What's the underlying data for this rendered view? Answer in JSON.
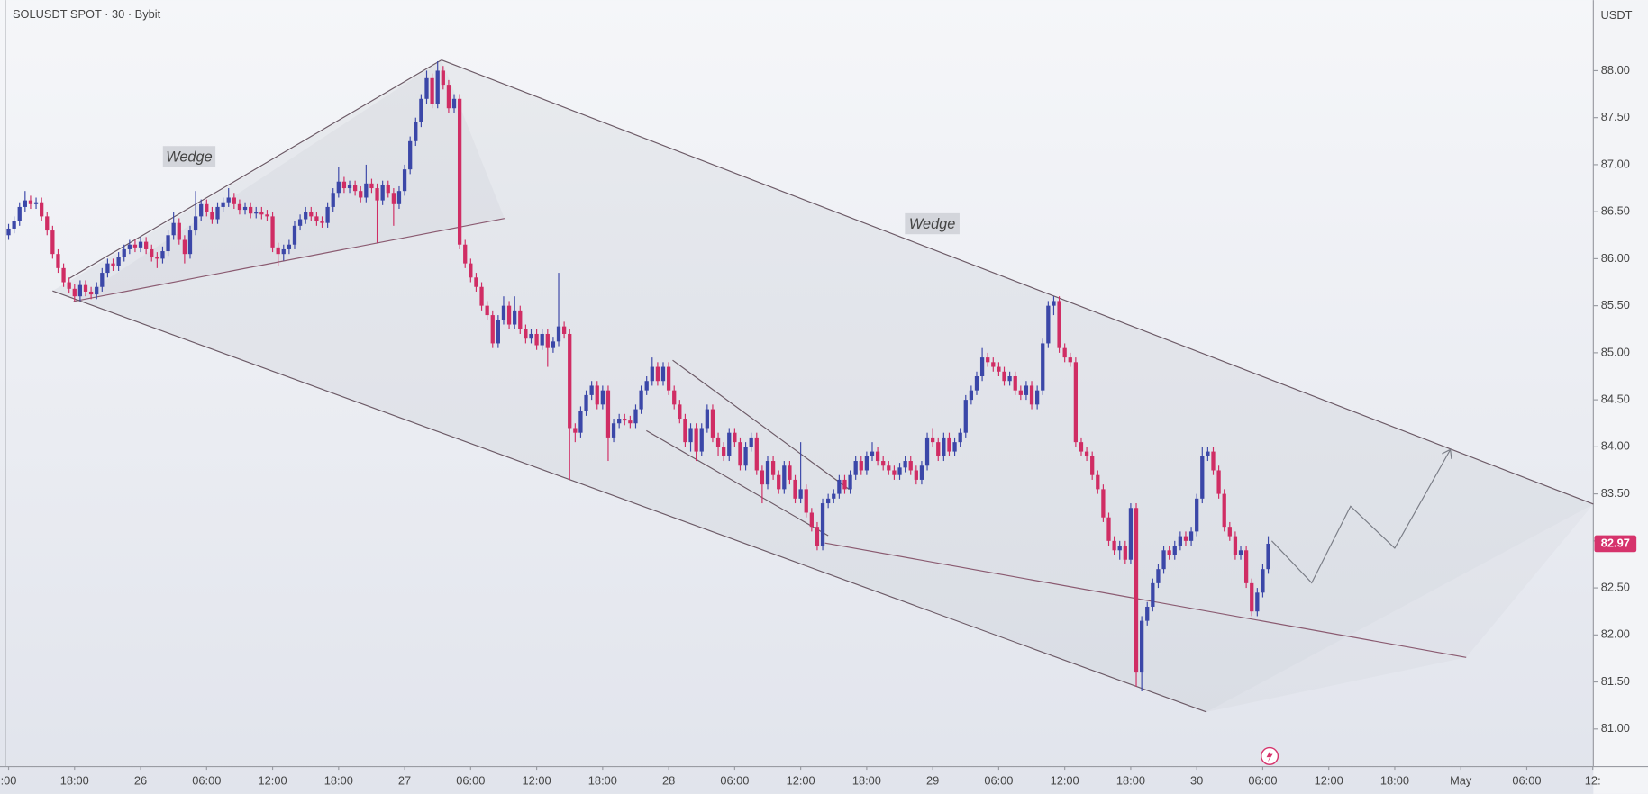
{
  "chart_data": {
    "type": "candlestick",
    "title": "SOLUSDT SPOT · 30 · Bybit",
    "y_label": "USDT",
    "annotations": [
      "Wedge",
      "Wedge"
    ],
    "up_color": "#3b47a8",
    "down_color": "#d02d64",
    "last_price_color": "#d6336c",
    "xlim": [
      11.22,
      156.05
    ],
    "ylim": [
      80.6,
      88.75
    ],
    "xticks": [
      {
        "value": 12,
        "label": ":00"
      },
      {
        "value": 18,
        "label": "18:00"
      },
      {
        "value": 24,
        "label": "26"
      },
      {
        "value": 30,
        "label": "06:00"
      },
      {
        "value": 36,
        "label": "12:00"
      },
      {
        "value": 42,
        "label": "18:00"
      },
      {
        "value": 48,
        "label": "27"
      },
      {
        "value": 54,
        "label": "06:00"
      },
      {
        "value": 60,
        "label": "12:00"
      },
      {
        "value": 66,
        "label": "18:00"
      },
      {
        "value": 72,
        "label": "28"
      },
      {
        "value": 78,
        "label": "06:00"
      },
      {
        "value": 84,
        "label": "12:00"
      },
      {
        "value": 90,
        "label": "18:00"
      },
      {
        "value": 96,
        "label": "29"
      },
      {
        "value": 102,
        "label": "06:00"
      },
      {
        "value": 108,
        "label": "12:00"
      },
      {
        "value": 114,
        "label": "18:00"
      },
      {
        "value": 120,
        "label": "30"
      },
      {
        "value": 126,
        "label": "06:00"
      },
      {
        "value": 132,
        "label": "12:00"
      },
      {
        "value": 138,
        "label": "18:00"
      },
      {
        "value": 144,
        "label": "May"
      },
      {
        "value": 150,
        "label": "06:00"
      },
      {
        "value": 156,
        "label": "12:"
      }
    ],
    "yticks": [
      {
        "value": 81,
        "label": "81.00"
      },
      {
        "value": 81.5,
        "label": "81.50"
      },
      {
        "value": 82,
        "label": "82.00"
      },
      {
        "value": 82.5,
        "label": "82.50"
      },
      {
        "value": 83,
        "label": "83.00"
      },
      {
        "value": 83.5,
        "label": "83.50"
      },
      {
        "value": 84,
        "label": "84.00"
      },
      {
        "value": 84.5,
        "label": "84.50"
      },
      {
        "value": 85,
        "label": "85.00"
      },
      {
        "value": 85.5,
        "label": "85.50"
      },
      {
        "value": 86,
        "label": "86.00"
      },
      {
        "value": 86.5,
        "label": "86.50"
      },
      {
        "value": 87,
        "label": "87.00"
      },
      {
        "value": 87.5,
        "label": "87.50"
      },
      {
        "value": 88,
        "label": "88.00"
      }
    ],
    "x": [
      12,
      12.5,
      13,
      13.5,
      14,
      14.5,
      15,
      15.5,
      16,
      16.5,
      17,
      17.5,
      18,
      18.5,
      19,
      19.5,
      20,
      20.5,
      21,
      21.5,
      22,
      22.5,
      23,
      23.5,
      24,
      24.5,
      25,
      25.5,
      26,
      26.5,
      27,
      27.5,
      28,
      28.5,
      29,
      29.5,
      30,
      30.5,
      31,
      31.5,
      32,
      32.5,
      33,
      33.5,
      34,
      34.5,
      35,
      35.5,
      36,
      36.5,
      37,
      37.5,
      38,
      38.5,
      39,
      39.5,
      40,
      40.5,
      41,
      41.5,
      42,
      42.5,
      43,
      43.5,
      44,
      44.5,
      45,
      45.5,
      46,
      46.5,
      47,
      47.5,
      48,
      48.5,
      49,
      49.5,
      50,
      50.5,
      51,
      51.5,
      52,
      52.5,
      53,
      53.5,
      54,
      54.5,
      55,
      55.5,
      56,
      56.5,
      57,
      57.5,
      58,
      58.5,
      59,
      59.5,
      60,
      60.5,
      61,
      61.5,
      62,
      62.5,
      63,
      63.5,
      64,
      64.5,
      65,
      65.5,
      66,
      66.5,
      67,
      67.5,
      68,
      68.5,
      69,
      69.5,
      70,
      70.5,
      71,
      71.5,
      72,
      72.5,
      73,
      73.5,
      74,
      74.5,
      75,
      75.5,
      76,
      76.5,
      77,
      77.5,
      78,
      78.5,
      79,
      79.5,
      80,
      80.5,
      81,
      81.5,
      82,
      82.5,
      83,
      83.5,
      84,
      84.5,
      85,
      85.5,
      86,
      86.5,
      87,
      87.5,
      88,
      88.5,
      89,
      89.5,
      90,
      90.5,
      91,
      91.5,
      92,
      92.5,
      93,
      93.5,
      94,
      94.5,
      95,
      95.5,
      96,
      96.5,
      97,
      97.5,
      98,
      98.5,
      99,
      99.5,
      100,
      100.5,
      101,
      101.5,
      102,
      102.5,
      103,
      103.5,
      104,
      104.5,
      105,
      105.5,
      106,
      106.5,
      107,
      107.5,
      108,
      108.5,
      109,
      109.5,
      110,
      110.5,
      111,
      111.5,
      112,
      112.5,
      113,
      113.5,
      114,
      114.5,
      115,
      115.5,
      116,
      116.5,
      117,
      117.5,
      118,
      118.5,
      119,
      119.5,
      120,
      120.5,
      121,
      121.5,
      122,
      122.5,
      123,
      123.5,
      124,
      124.5,
      125,
      125.5,
      126,
      126.5
    ],
    "open": [
      86.25,
      86.32,
      86.4,
      86.55,
      86.62,
      86.58,
      86.6,
      86.45,
      86.3,
      86.05,
      85.9,
      85.75,
      85.68,
      85.6,
      85.72,
      85.65,
      85.62,
      85.7,
      85.85,
      85.95,
      85.92,
      86.02,
      86.1,
      86.15,
      86.12,
      86.18,
      86.1,
      86.02,
      86.0,
      86.08,
      86.25,
      86.38,
      86.2,
      86.05,
      86.3,
      86.45,
      86.58,
      86.5,
      86.42,
      86.55,
      86.6,
      86.65,
      86.58,
      86.52,
      86.55,
      86.48,
      86.5,
      86.47,
      86.45,
      86.12,
      86.05,
      86.1,
      86.15,
      86.35,
      86.42,
      86.5,
      86.45,
      86.4,
      86.38,
      86.55,
      86.7,
      86.82,
      86.75,
      86.78,
      86.72,
      86.65,
      86.8,
      86.75,
      86.62,
      86.78,
      86.7,
      86.58,
      86.72,
      86.95,
      87.25,
      87.45,
      87.7,
      87.92,
      87.65,
      88.0,
      87.85,
      87.6,
      87.7,
      86.15,
      85.95,
      85.8,
      85.7,
      85.5,
      85.4,
      85.1,
      85.35,
      85.5,
      85.3,
      85.45,
      85.25,
      85.15,
      85.2,
      85.08,
      85.2,
      85.05,
      85.12,
      85.28,
      85.2,
      84.2,
      84.15,
      84.38,
      84.55,
      84.65,
      84.45,
      84.6,
      84.1,
      84.25,
      84.3,
      84.28,
      84.25,
      84.4,
      84.6,
      84.7,
      84.85,
      84.7,
      84.85,
      84.6,
      84.45,
      84.3,
      84.05,
      84.2,
      83.95,
      84.2,
      84.4,
      84.1,
      84.0,
      83.9,
      84.15,
      84.05,
      83.8,
      84.0,
      84.1,
      83.75,
      83.6,
      83.85,
      83.7,
      83.55,
      83.8,
      83.65,
      83.45,
      83.55,
      83.3,
      83.15,
      82.95,
      83.4,
      83.45,
      83.5,
      83.65,
      83.55,
      83.7,
      83.85,
      83.75,
      83.9,
      83.95,
      83.85,
      83.8,
      83.75,
      83.7,
      83.78,
      83.85,
      83.75,
      83.65,
      83.8,
      84.1,
      84.05,
      83.9,
      84.1,
      83.95,
      84.05,
      84.15,
      84.5,
      84.6,
      84.75,
      84.95,
      84.9,
      84.85,
      84.8,
      84.7,
      84.75,
      84.6,
      84.55,
      84.65,
      84.45,
      84.6,
      85.1,
      85.5,
      85.55,
      85.05,
      84.95,
      84.9,
      84.05,
      83.95,
      83.9,
      83.7,
      83.55,
      83.25,
      83.0,
      82.9,
      82.95,
      82.8,
      83.35,
      81.6,
      82.15,
      82.3,
      82.55,
      82.7,
      82.9,
      82.85,
      82.95,
      83.05,
      83.0,
      83.1,
      83.45,
      83.9,
      83.95,
      83.75,
      83.5,
      83.15,
      83.05,
      82.85,
      82.9,
      82.55,
      82.25,
      82.45,
      82.7
    ],
    "high": [
      86.37,
      86.45,
      86.6,
      86.72,
      86.67,
      86.65,
      86.65,
      86.5,
      86.35,
      86.1,
      85.95,
      85.8,
      85.73,
      85.77,
      85.77,
      85.7,
      85.75,
      85.9,
      86.0,
      86.0,
      86.07,
      86.15,
      86.2,
      86.2,
      86.23,
      86.23,
      86.15,
      86.07,
      86.13,
      86.3,
      86.5,
      86.43,
      86.25,
      86.35,
      86.72,
      86.63,
      86.63,
      86.55,
      86.6,
      86.65,
      86.75,
      86.7,
      86.63,
      86.6,
      86.6,
      86.55,
      86.55,
      86.52,
      86.5,
      86.17,
      86.15,
      86.2,
      86.4,
      86.47,
      86.55,
      86.55,
      86.5,
      86.45,
      86.6,
      86.75,
      86.98,
      86.87,
      86.83,
      86.83,
      86.77,
      87.0,
      86.85,
      86.8,
      86.83,
      86.83,
      86.75,
      86.77,
      87.0,
      87.3,
      87.5,
      87.75,
      88.0,
      87.97,
      88.1,
      88.05,
      87.9,
      87.75,
      87.75,
      86.2,
      86.0,
      85.85,
      85.75,
      85.55,
      85.45,
      85.4,
      85.6,
      85.55,
      85.6,
      85.5,
      85.3,
      85.25,
      85.25,
      85.25,
      85.25,
      85.17,
      85.85,
      85.33,
      85.25,
      84.25,
      84.43,
      84.6,
      84.7,
      84.7,
      84.65,
      84.65,
      84.3,
      84.35,
      84.35,
      84.33,
      84.45,
      84.65,
      84.75,
      84.95,
      84.9,
      84.9,
      84.9,
      84.65,
      84.5,
      84.35,
      84.25,
      84.25,
      84.25,
      84.45,
      84.45,
      84.15,
      84.05,
      84.2,
      84.2,
      84.1,
      84.05,
      84.15,
      84.15,
      83.8,
      83.9,
      83.9,
      83.75,
      83.85,
      83.85,
      83.7,
      84.05,
      83.6,
      83.35,
      83.2,
      83.45,
      83.5,
      83.55,
      83.7,
      83.7,
      83.75,
      83.9,
      83.9,
      83.95,
      84.05,
      84.0,
      83.9,
      83.85,
      83.8,
      83.83,
      83.9,
      83.9,
      83.8,
      83.85,
      84.15,
      84.2,
      84.1,
      84.15,
      84.15,
      84.1,
      84.2,
      84.55,
      84.65,
      84.8,
      85.05,
      85.0,
      84.95,
      84.9,
      84.85,
      84.8,
      84.8,
      84.65,
      84.7,
      84.7,
      84.65,
      85.15,
      85.55,
      85.6,
      85.6,
      85.1,
      85.0,
      84.95,
      84.1,
      84.0,
      83.95,
      83.75,
      83.6,
      83.3,
      83.05,
      83.0,
      83.0,
      83.4,
      83.4,
      82.2,
      82.35,
      82.6,
      82.75,
      82.95,
      82.95,
      83.0,
      83.1,
      83.1,
      83.15,
      83.5,
      84.0,
      84.0,
      84.0,
      83.8,
      83.55,
      83.2,
      83.1,
      82.95,
      82.95,
      82.6,
      82.5,
      82.75,
      83.05
    ],
    "low": [
      86.2,
      86.27,
      86.35,
      86.5,
      86.53,
      86.53,
      86.4,
      86.25,
      86.0,
      85.85,
      85.7,
      85.63,
      85.55,
      85.55,
      85.6,
      85.57,
      85.57,
      85.65,
      85.8,
      85.87,
      85.87,
      85.97,
      86.05,
      86.07,
      86.07,
      86.05,
      85.97,
      85.9,
      85.95,
      86.03,
      86.2,
      86.15,
      85.95,
      86.0,
      86.25,
      86.4,
      86.45,
      86.37,
      86.37,
      86.5,
      86.55,
      86.53,
      86.47,
      86.47,
      86.43,
      86.43,
      86.42,
      86.4,
      86.07,
      85.92,
      85.98,
      86.05,
      86.1,
      86.3,
      86.37,
      86.4,
      86.35,
      86.33,
      86.33,
      86.5,
      86.65,
      86.7,
      86.7,
      86.67,
      86.6,
      86.6,
      86.7,
      86.17,
      86.57,
      86.65,
      86.35,
      86.53,
      86.67,
      86.9,
      87.2,
      87.4,
      87.65,
      87.6,
      87.6,
      87.8,
      87.55,
      87.55,
      86.1,
      85.9,
      85.75,
      85.65,
      85.45,
      85.35,
      85.05,
      85.05,
      85.3,
      85.25,
      85.25,
      85.2,
      85.1,
      85.1,
      85.03,
      85.03,
      84.85,
      85.0,
      85.07,
      85.15,
      83.65,
      84.05,
      84.1,
      84.33,
      84.5,
      84.4,
      84.4,
      83.85,
      84.05,
      84.2,
      84.23,
      84.2,
      84.2,
      84.35,
      84.55,
      84.65,
      84.65,
      84.65,
      84.55,
      84.4,
      84.25,
      84.0,
      83.95,
      83.85,
      83.9,
      84.15,
      84.05,
      83.9,
      83.85,
      83.85,
      84.0,
      83.75,
      83.75,
      83.95,
      83.7,
      83.4,
      83.55,
      83.65,
      83.5,
      83.5,
      83.6,
      83.4,
      83.4,
      83.25,
      83.1,
      82.9,
      82.9,
      83.35,
      83.4,
      83.45,
      83.5,
      83.5,
      83.65,
      83.7,
      83.7,
      83.85,
      83.8,
      83.75,
      83.7,
      83.65,
      83.65,
      83.73,
      83.7,
      83.6,
      83.6,
      83.75,
      84.0,
      83.85,
      83.85,
      83.9,
      83.9,
      84.0,
      84.1,
      84.45,
      84.55,
      84.7,
      84.85,
      84.8,
      84.75,
      84.65,
      84.65,
      84.55,
      84.5,
      84.5,
      84.4,
      84.4,
      84.55,
      85.05,
      85.4,
      85.0,
      84.9,
      84.85,
      84.0,
      83.9,
      83.85,
      83.65,
      83.5,
      83.2,
      82.95,
      82.85,
      82.8,
      82.75,
      82.75,
      81.45,
      81.4,
      82.1,
      82.25,
      82.5,
      82.65,
      82.8,
      82.8,
      82.9,
      82.95,
      82.95,
      83.05,
      83.4,
      83.85,
      83.7,
      83.45,
      83.1,
      83.0,
      82.8,
      82.8,
      82.5,
      82.2,
      82.2,
      82.4,
      82.65
    ],
    "close": [
      86.32,
      86.4,
      86.55,
      86.62,
      86.58,
      86.6,
      86.45,
      86.3,
      86.05,
      85.9,
      85.75,
      85.68,
      85.6,
      85.72,
      85.65,
      85.62,
      85.7,
      85.85,
      85.95,
      85.92,
      86.02,
      86.1,
      86.15,
      86.12,
      86.18,
      86.1,
      86.02,
      86.0,
      86.08,
      86.25,
      86.38,
      86.2,
      86.05,
      86.3,
      86.45,
      86.58,
      86.5,
      86.42,
      86.55,
      86.6,
      86.65,
      86.58,
      86.52,
      86.55,
      86.48,
      86.5,
      86.47,
      86.45,
      86.12,
      86.05,
      86.1,
      86.15,
      86.35,
      86.42,
      86.5,
      86.45,
      86.4,
      86.38,
      86.55,
      86.7,
      86.82,
      86.75,
      86.78,
      86.72,
      86.65,
      86.8,
      86.75,
      86.62,
      86.78,
      86.7,
      86.58,
      86.72,
      86.95,
      87.25,
      87.45,
      87.7,
      87.92,
      87.65,
      88.0,
      87.85,
      87.6,
      87.7,
      86.15,
      85.95,
      85.8,
      85.7,
      85.5,
      85.4,
      85.1,
      85.35,
      85.5,
      85.3,
      85.45,
      85.25,
      85.15,
      85.2,
      85.08,
      85.2,
      85.05,
      85.12,
      85.28,
      85.2,
      84.2,
      84.15,
      84.38,
      84.55,
      84.65,
      84.45,
      84.6,
      84.1,
      84.25,
      84.3,
      84.28,
      84.25,
      84.4,
      84.6,
      84.7,
      84.85,
      84.7,
      84.85,
      84.6,
      84.45,
      84.3,
      84.05,
      84.2,
      83.95,
      84.2,
      84.4,
      84.1,
      84.0,
      83.9,
      84.15,
      84.05,
      83.8,
      84.0,
      84.1,
      83.75,
      83.6,
      83.85,
      83.7,
      83.55,
      83.8,
      83.65,
      83.45,
      83.55,
      83.3,
      83.15,
      82.95,
      83.4,
      83.45,
      83.5,
      83.65,
      83.55,
      83.7,
      83.85,
      83.75,
      83.9,
      83.95,
      83.85,
      83.8,
      83.75,
      83.7,
      83.78,
      83.85,
      83.75,
      83.65,
      83.8,
      84.1,
      84.05,
      83.9,
      84.1,
      83.95,
      84.05,
      84.15,
      84.5,
      84.6,
      84.75,
      84.95,
      84.9,
      84.85,
      84.8,
      84.7,
      84.75,
      84.6,
      84.55,
      84.65,
      84.45,
      84.6,
      85.1,
      85.5,
      85.55,
      85.05,
      84.95,
      84.9,
      84.05,
      83.95,
      83.9,
      83.7,
      83.55,
      83.25,
      83.0,
      82.9,
      82.95,
      82.8,
      83.35,
      81.6,
      82.15,
      82.3,
      82.55,
      82.7,
      82.9,
      82.85,
      82.95,
      83.05,
      83.0,
      83.1,
      83.45,
      83.9,
      83.95,
      83.75,
      83.5,
      83.15,
      83.05,
      82.85,
      82.9,
      82.55,
      82.25,
      82.45,
      82.7,
      82.97
    ]
  }
}
